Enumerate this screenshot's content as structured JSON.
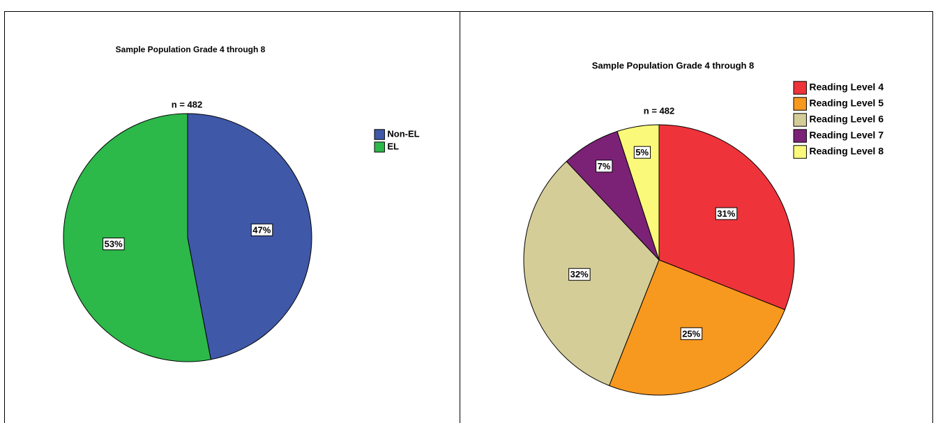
{
  "chart_data": [
    {
      "type": "pie",
      "title": "Sample Population Grade 4 through 8",
      "subtitle": "n = 482",
      "categories": [
        "Non-EL",
        "EL"
      ],
      "values": [
        47,
        53
      ],
      "value_labels": [
        "47%",
        "53%"
      ],
      "colors": [
        "#3f58a8",
        "#2db84a"
      ]
    },
    {
      "type": "pie",
      "title": "Sample Population Grade 4 through 8",
      "subtitle": "n = 482",
      "categories": [
        "Reading Level 4",
        "Reading Level 5",
        "Reading Level 6",
        "Reading Level 7",
        "Reading Level 8"
      ],
      "values": [
        31,
        25,
        32,
        7,
        5
      ],
      "value_labels": [
        "31%",
        "25%",
        "32%",
        "7%",
        "5%"
      ],
      "colors": [
        "#ef333a",
        "#f7981f",
        "#d4cd98",
        "#7b2277",
        "#fbf97a"
      ]
    }
  ]
}
